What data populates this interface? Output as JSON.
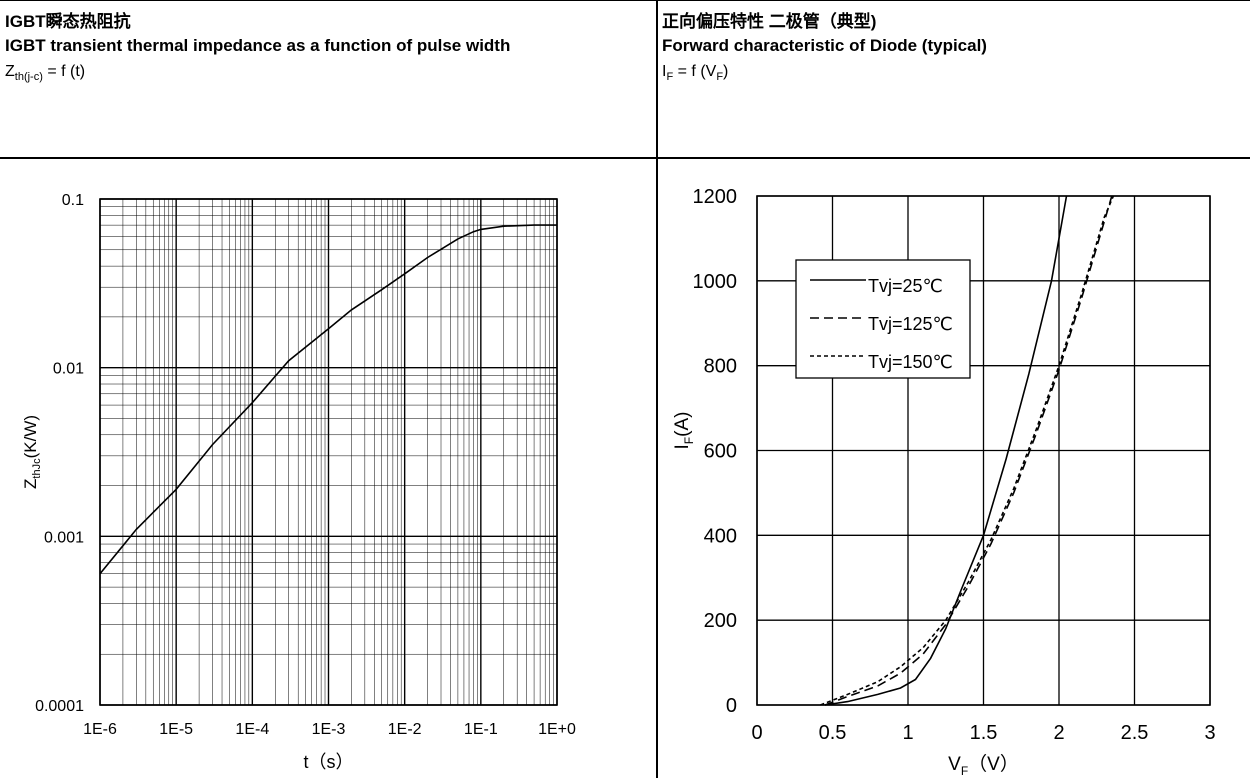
{
  "left_panel": {
    "title": "IGBT瞬态热阻抗",
    "subtitle": "IGBT transient thermal impedance as a function of pulse width",
    "formula_lhs": "Z",
    "formula_sub": "th(j-c)",
    "formula_rhs": " = f (t)"
  },
  "right_panel": {
    "title": "正向偏压特性 二极管（典型)",
    "subtitle": "Forward characteristic of Diode (typical)",
    "formula_lhs": "I",
    "formula_sub": "F",
    "formula_mid": " = f (V",
    "formula_sub2": "F",
    "formula_end": ")"
  },
  "chart_data": [
    {
      "type": "line",
      "xscale": "log",
      "yscale": "log",
      "xlim": [
        1e-06,
        1
      ],
      "ylim": [
        0.0001,
        0.1
      ],
      "xticks": [
        "1E-6",
        "1E-5",
        "1E-4",
        "1E-3",
        "1E-2",
        "1E-1",
        "1E+0"
      ],
      "yticks": [
        "0.0001",
        "0.001",
        "0.01",
        "0.1"
      ],
      "xlabel": "t（s）",
      "ylabel_main": "Z",
      "ylabel_sub": "thJc",
      "ylabel_end": "(K/W)",
      "grid": true,
      "series": [
        {
          "x": [
            1e-06,
            3e-06,
            1e-05,
            3e-05,
            0.0001,
            0.0003,
            0.001,
            0.002,
            0.005,
            0.01,
            0.02,
            0.05,
            0.08,
            0.1,
            0.2,
            0.5,
            1
          ],
          "y": [
            0.0006,
            0.0011,
            0.0019,
            0.0035,
            0.0062,
            0.011,
            0.017,
            0.022,
            0.029,
            0.036,
            0.045,
            0.058,
            0.064,
            0.066,
            0.069,
            0.07,
            0.07
          ]
        }
      ]
    },
    {
      "type": "line",
      "xlim": [
        0,
        3
      ],
      "ylim": [
        0,
        1200
      ],
      "xticks": [
        "0",
        "0.5",
        "1",
        "1.5",
        "2",
        "2.5",
        "3"
      ],
      "yticks": [
        "0",
        "200",
        "400",
        "600",
        "800",
        "1000",
        "1200"
      ],
      "xlabel_main": "V",
      "xlabel_sub": "F",
      "xlabel_end": "（V）",
      "ylabel_main": "I",
      "ylabel_sub": "F",
      "ylabel_end": "(A)",
      "grid": true,
      "legend_position": "top-left",
      "series": [
        {
          "name": "Tvj=25℃",
          "dash": "solid",
          "x": [
            0.45,
            0.6,
            0.8,
            0.95,
            1.05,
            1.15,
            1.25,
            1.35,
            1.5,
            1.65,
            1.8,
            1.95,
            2.05
          ],
          "y": [
            0,
            8,
            25,
            40,
            60,
            110,
            180,
            270,
            400,
            580,
            780,
            1000,
            1200
          ]
        },
        {
          "name": "Tvj=125℃",
          "dash": "dashed",
          "x": [
            0.45,
            0.6,
            0.8,
            0.95,
            1.1,
            1.25,
            1.4,
            1.55,
            1.7,
            1.85,
            2.0,
            2.15,
            2.3,
            2.35
          ],
          "y": [
            0,
            20,
            45,
            75,
            120,
            190,
            280,
            380,
            500,
            640,
            790,
            960,
            1140,
            1200
          ]
        },
        {
          "name": "Tvj=150℃",
          "dash": "dotted",
          "x": [
            0.42,
            0.6,
            0.8,
            0.95,
            1.1,
            1.25,
            1.4,
            1.55,
            1.7,
            1.85,
            2.0,
            2.15,
            2.3,
            2.36
          ],
          "y": [
            0,
            25,
            55,
            90,
            135,
            200,
            290,
            390,
            510,
            650,
            800,
            970,
            1150,
            1200
          ]
        }
      ]
    }
  ]
}
